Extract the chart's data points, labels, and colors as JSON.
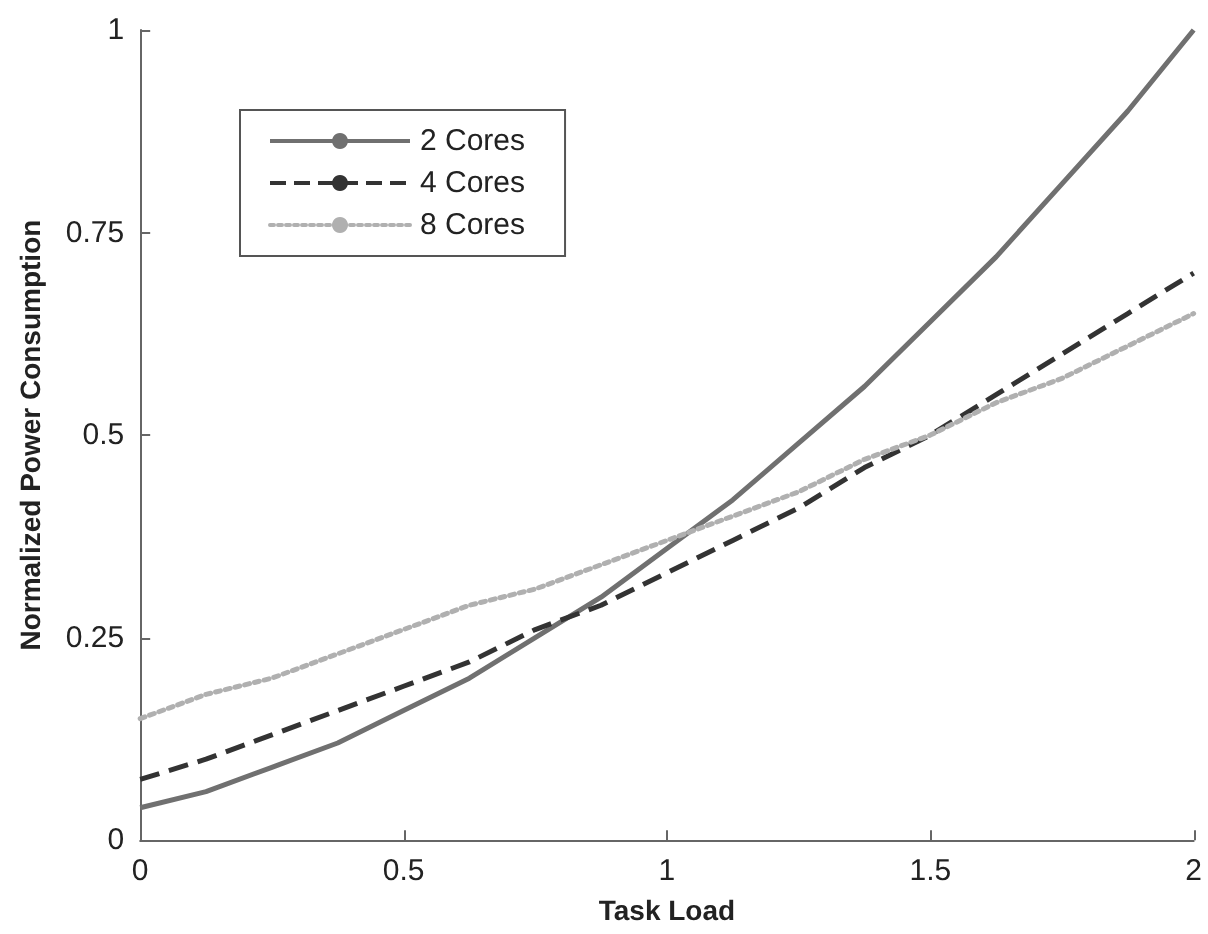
{
  "chart_data": {
    "type": "line",
    "xlabel": "Task Load",
    "ylabel": "Normalized Power Consumption",
    "x": [
      0,
      0.125,
      0.25,
      0.375,
      0.5,
      0.625,
      0.75,
      0.875,
      1,
      1.125,
      1.25,
      1.375,
      1.5,
      1.625,
      1.75,
      1.875,
      2
    ],
    "series": [
      {
        "name": "2 Cores",
        "color": "#707070",
        "line_style": "solid",
        "values": [
          0.04,
          0.06,
          0.09,
          0.12,
          0.16,
          0.2,
          0.25,
          0.3,
          0.36,
          0.42,
          0.49,
          0.56,
          0.64,
          0.72,
          0.81,
          0.9,
          1.0
        ]
      },
      {
        "name": "4 Cores",
        "color": "#333333",
        "line_style": "dashed",
        "values": [
          0.075,
          0.1,
          0.13,
          0.16,
          0.19,
          0.22,
          0.26,
          0.29,
          0.33,
          0.37,
          0.41,
          0.46,
          0.5,
          0.55,
          0.6,
          0.65,
          0.7
        ]
      },
      {
        "name": "8 Cores",
        "color": "#b0b0b0",
        "line_style": "dotted",
        "values": [
          0.15,
          0.18,
          0.2,
          0.23,
          0.26,
          0.29,
          0.31,
          0.34,
          0.37,
          0.4,
          0.43,
          0.47,
          0.5,
          0.54,
          0.57,
          0.61,
          0.65
        ]
      }
    ],
    "xlim": [
      0,
      2
    ],
    "xticks": [
      0,
      0.5,
      1,
      1.5,
      2
    ],
    "ylim": [
      0,
      1
    ],
    "yticks": [
      0,
      0.25,
      0.5,
      0.75,
      1
    ],
    "grid": false,
    "legend": "top left",
    "marker": "none"
  }
}
